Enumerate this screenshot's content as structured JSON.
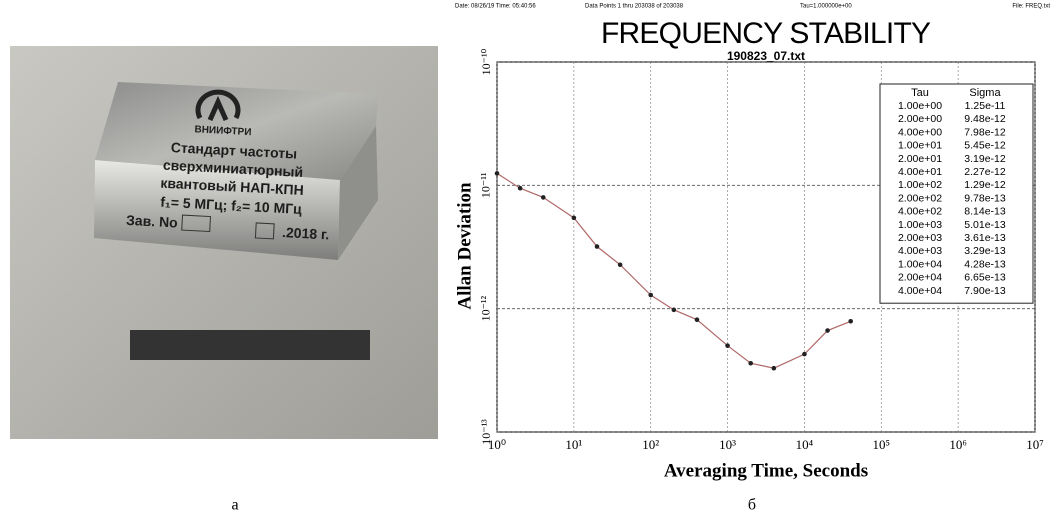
{
  "photo": {
    "logo": "ВНИИФТРИ",
    "lines": [
      "Стандарт частоты",
      "сверхминиатюрный",
      "квантовый НАП-КПН",
      "f₁= 5 МГц; f₂= 10 МГц"
    ],
    "serial_label": "Зав. No",
    "year": ".2018 г."
  },
  "captions": [
    "а",
    "б"
  ],
  "chart_data": {
    "type": "line",
    "header": [
      "Date: 08/26/19   Time: 05:40:56",
      "Data Points 1 thru 203038 of 203038",
      "Tau=1.000000e+00",
      "File: FREQ.txt"
    ],
    "title": "FREQUENCY STABILITY",
    "subtitle": "190823_07.txt",
    "x_label": "Averaging Time, Seconds",
    "y_label": "Allan Deviation",
    "log_x": true,
    "log_y": true,
    "grid": true,
    "table_headers": [
      "Tau",
      "Sigma"
    ],
    "x": [
      1,
      2,
      4,
      10,
      20,
      40,
      100,
      200,
      400,
      1000,
      2000,
      4000,
      10000,
      20000,
      40000
    ],
    "x_labels": [
      "1.00e+00",
      "2.00e+00",
      "4.00e+00",
      "1.00e+01",
      "2.00e+01",
      "4.00e+01",
      "1.00e+02",
      "2.00e+02",
      "4.00e+02",
      "1.00e+03",
      "2.00e+03",
      "4.00e+03",
      "1.00e+04",
      "2.00e+04",
      "4.00e+04"
    ],
    "values": [
      1.25e-11,
      9.48e-12,
      7.98e-12,
      5.45e-12,
      3.19e-12,
      2.27e-12,
      1.29e-12,
      9.78e-13,
      8.14e-13,
      5.01e-13,
      3.61e-13,
      3.29e-13,
      4.28e-13,
      6.65e-13,
      7.9e-13
    ],
    "value_labels": [
      "1.25e-11",
      "9.48e-12",
      "7.98e-12",
      "5.45e-12",
      "3.19e-12",
      "2.27e-12",
      "1.29e-12",
      "9.78e-13",
      "8.14e-13",
      "5.01e-13",
      "3.61e-13",
      "3.29e-13",
      "4.28e-13",
      "6.65e-13",
      "7.90e-13"
    ],
    "color": "#b06868",
    "marker_color": "#222222",
    "xlim": [
      1,
      10000000
    ],
    "xticks": [
      {
        "value": 1,
        "label": "10⁰"
      },
      {
        "value": 10,
        "label": "10¹"
      },
      {
        "value": 100,
        "label": "10²"
      },
      {
        "value": 1000,
        "label": "10³"
      },
      {
        "value": 10000,
        "label": "10⁴"
      },
      {
        "value": 100000,
        "label": "10⁵"
      },
      {
        "value": 1000000,
        "label": "10⁶"
      },
      {
        "value": 10000000,
        "label": "10⁷"
      }
    ],
    "ylim": [
      1e-13,
      1e-10
    ],
    "yticks": [
      {
        "value": 1e-13,
        "label": "10⁻¹³"
      },
      {
        "value": 1e-12,
        "label": "10⁻¹²"
      },
      {
        "value": 1e-11,
        "label": "10⁻¹¹"
      },
      {
        "value": 1e-10,
        "label": "10⁻¹⁰"
      }
    ]
  }
}
